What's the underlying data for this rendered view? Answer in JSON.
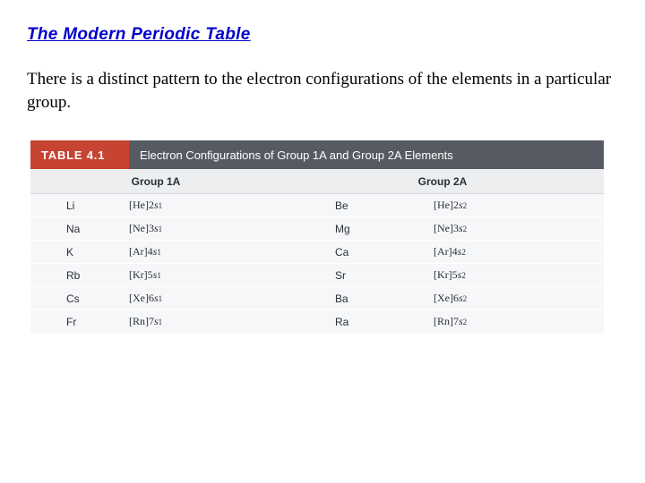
{
  "heading": "The Modern Periodic Table",
  "bodytext": "There is a distinct pattern to the electron configurations of the elements in a particular group.",
  "table": {
    "label": "TABLE 4.1",
    "title": "Electron Configurations of Group 1A and Group 2A Elements",
    "group_headers": [
      "Group 1A",
      "Group 2A"
    ],
    "rows": [
      {
        "el1": "Li",
        "cfg1_core": "[He]",
        "cfg1_n": "2",
        "cfg1_orb": "s",
        "cfg1_sup": "1",
        "el2": "Be",
        "cfg2_core": "[He]",
        "cfg2_n": "2",
        "cfg2_orb": "s",
        "cfg2_sup": "2"
      },
      {
        "el1": "Na",
        "cfg1_core": "[Ne]",
        "cfg1_n": "3",
        "cfg1_orb": "s",
        "cfg1_sup": "1",
        "el2": "Mg",
        "cfg2_core": "[Ne]",
        "cfg2_n": "3",
        "cfg2_orb": "s",
        "cfg2_sup": "2"
      },
      {
        "el1": "K",
        "cfg1_core": "[Ar]",
        "cfg1_n": "4",
        "cfg1_orb": "s",
        "cfg1_sup": "1",
        "el2": "Ca",
        "cfg2_core": "[Ar]",
        "cfg2_n": "4",
        "cfg2_orb": "s",
        "cfg2_sup": "2"
      },
      {
        "el1": "Rb",
        "cfg1_core": "[Kr]",
        "cfg1_n": "5",
        "cfg1_orb": "s",
        "cfg1_sup": "1",
        "el2": "Sr",
        "cfg2_core": "[Kr]",
        "cfg2_n": "5",
        "cfg2_orb": "s",
        "cfg2_sup": "2"
      },
      {
        "el1": "Cs",
        "cfg1_core": "[Xe]",
        "cfg1_n": "6",
        "cfg1_orb": "s",
        "cfg1_sup": "1",
        "el2": "Ba",
        "cfg2_core": "[Xe]",
        "cfg2_n": "6",
        "cfg2_orb": "s",
        "cfg2_sup": "2"
      },
      {
        "el1": "Fr",
        "cfg1_core": "[Rn]",
        "cfg1_n": "7",
        "cfg1_orb": "s",
        "cfg1_sup": "1",
        "el2": "Ra",
        "cfg2_core": "[Rn]",
        "cfg2_n": "7",
        "cfg2_orb": "s",
        "cfg2_sup": "2"
      }
    ],
    "colors": {
      "label_bg": "#c74432",
      "title_bg": "#565b63",
      "header_row_bg": "#eceef0",
      "row_bg": "#f6f7f8",
      "text": "#2b2f36"
    }
  }
}
